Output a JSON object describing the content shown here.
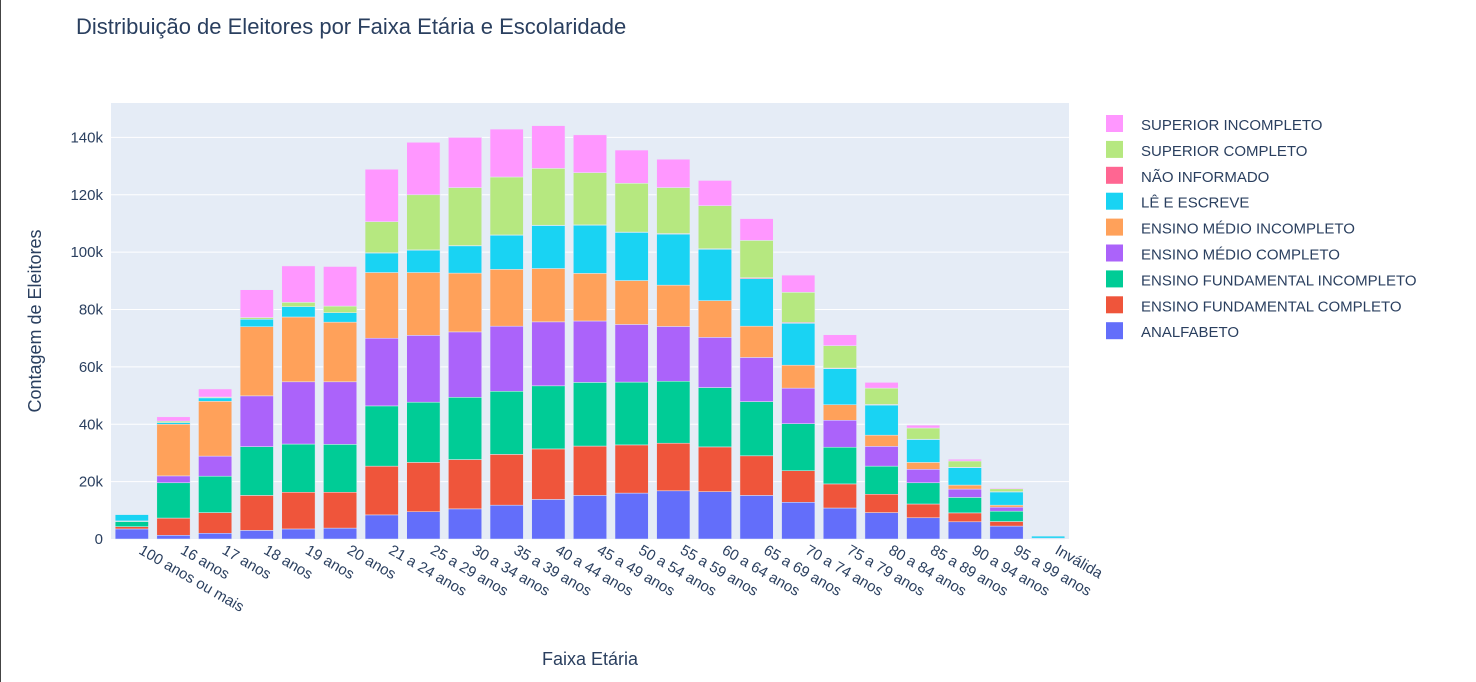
{
  "chart_data": {
    "type": "bar",
    "barmode": "stack",
    "title": "Distribuição de Eleitores por Faixa Etária e Escolaridade",
    "xlabel": "Faixa Etária",
    "ylabel": "Contagem de Eleitores",
    "ylim": [
      0,
      152000
    ],
    "yticks": [
      0,
      20000,
      40000,
      60000,
      80000,
      100000,
      120000,
      140000
    ],
    "ytick_labels": [
      "0",
      "20k",
      "40k",
      "60k",
      "80k",
      "100k",
      "120k",
      "140k"
    ],
    "grid": true,
    "legend_position": "right",
    "categories": [
      "100 anos ou mais",
      "16 anos",
      "17 anos",
      "18 anos",
      "19 anos",
      "20 anos",
      "21 a 24 anos",
      "25 a 29 anos",
      "30 a 34 anos",
      "35 a 39 anos",
      "40 a 44 anos",
      "45 a 49 anos",
      "50 a 54 anos",
      "55 a 59 anos",
      "60 a 64 anos",
      "65 a 69 anos",
      "70 a 74 anos",
      "75 a 79 anos",
      "80 a 84 anos",
      "85 a 89 anos",
      "90 a 94 anos",
      "95 a 99 anos",
      "Inválida"
    ],
    "series": [
      {
        "name": "ANALFABETO",
        "color": "#636efa",
        "values": [
          3500,
          1300,
          2000,
          3000,
          3500,
          3800,
          8400,
          9500,
          10500,
          11800,
          13800,
          15200,
          16000,
          16800,
          16500,
          15200,
          12800,
          10800,
          9200,
          7400,
          6000,
          4500,
          200
        ]
      },
      {
        "name": "ENSINO FUNDAMENTAL COMPLETO",
        "color": "#ef553b",
        "values": [
          800,
          6000,
          7200,
          12200,
          12800,
          12500,
          17000,
          17200,
          17200,
          17700,
          17600,
          17200,
          16800,
          16600,
          15600,
          13800,
          11000,
          8400,
          6400,
          4800,
          3100,
          1600,
          0
        ]
      },
      {
        "name": "ENSINO FUNDAMENTAL INCOMPLETO",
        "color": "#00cc96",
        "values": [
          1800,
          12300,
          12700,
          17000,
          16800,
          16700,
          21000,
          21000,
          21700,
          22000,
          22000,
          22200,
          21900,
          21600,
          20700,
          18900,
          16400,
          12800,
          9800,
          7400,
          5400,
          3600,
          100
        ]
      },
      {
        "name": "ENSINO MÉDIO COMPLETO",
        "color": "#ab63fa",
        "values": [
          100,
          2400,
          7000,
          17700,
          21700,
          21800,
          23600,
          23300,
          22800,
          22700,
          22300,
          21400,
          20100,
          19100,
          17500,
          15400,
          12400,
          9400,
          6900,
          4700,
          2900,
          1400,
          0
        ]
      },
      {
        "name": "ENSINO MÉDIO INCOMPLETO",
        "color": "#ffa15a",
        "values": [
          100,
          18000,
          19100,
          24100,
          22600,
          20800,
          22900,
          21900,
          20500,
          19800,
          18600,
          16600,
          15300,
          14400,
          12800,
          10900,
          8000,
          5400,
          3900,
          2400,
          1400,
          700,
          0
        ]
      },
      {
        "name": "LÊ E ESCREVE",
        "color": "#19d3f3",
        "values": [
          2200,
          600,
          1200,
          2600,
          3600,
          3300,
          6800,
          7800,
          9500,
          11900,
          15000,
          16800,
          16800,
          17800,
          17900,
          16600,
          14600,
          12600,
          10500,
          8000,
          6100,
          4600,
          700
        ]
      },
      {
        "name": "NÃO INFORMADO",
        "color": "#ff6692",
        "values": [
          0,
          0,
          0,
          0,
          0,
          0,
          100,
          100,
          100,
          100,
          100,
          100,
          100,
          200,
          200,
          300,
          300,
          200,
          200,
          100,
          100,
          100,
          0
        ]
      },
      {
        "name": "SUPERIOR COMPLETO",
        "color": "#b6e880",
        "values": [
          0,
          500,
          300,
          600,
          1500,
          2300,
          10800,
          19200,
          20200,
          20200,
          19800,
          18200,
          17000,
          16000,
          15000,
          13000,
          10500,
          7800,
          5700,
          3900,
          2200,
          1000,
          0
        ]
      },
      {
        "name": "SUPERIOR INCOMPLETO",
        "color": "#ff97ff",
        "values": [
          0,
          1500,
          2800,
          9700,
          12700,
          13800,
          18300,
          18300,
          17500,
          16700,
          14900,
          13200,
          11600,
          9900,
          8800,
          7600,
          6000,
          3800,
          2000,
          1000,
          600,
          300,
          0
        ]
      }
    ]
  }
}
